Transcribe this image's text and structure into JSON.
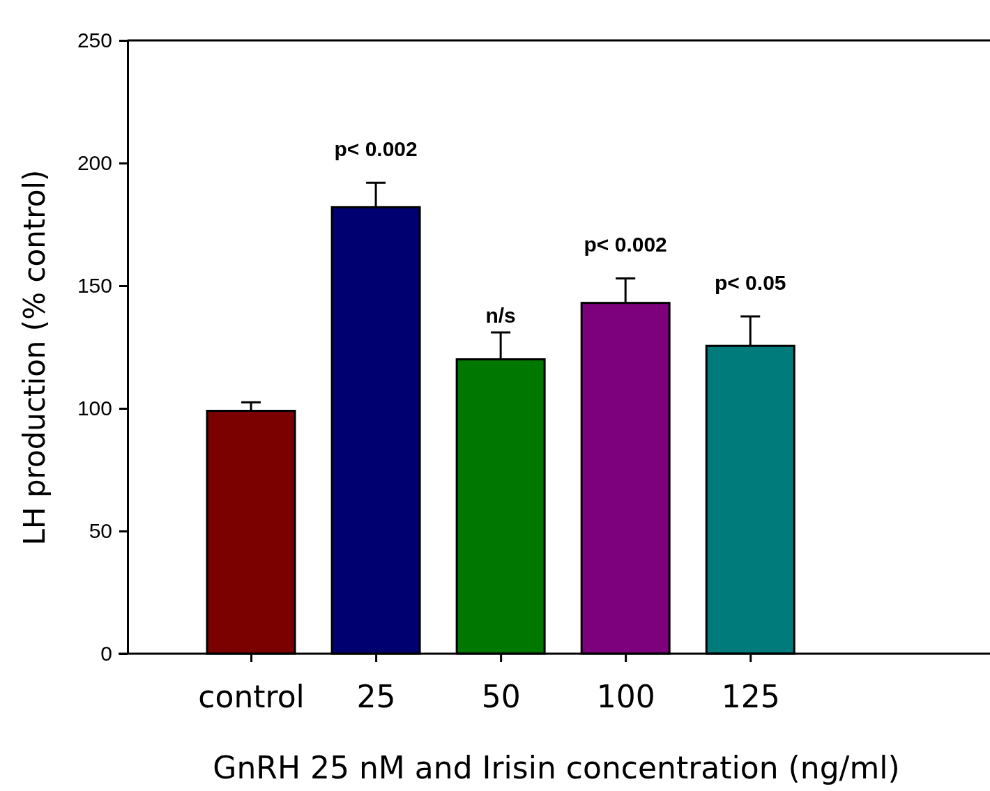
{
  "chart_data": {
    "type": "bar",
    "xlabel": "GnRH 25 nM  and Irisin concentration (ng/ml)",
    "ylabel": "LH production  (% control)",
    "categories": [
      "control",
      "25",
      "50",
      "100",
      "125"
    ],
    "values": [
      99,
      182,
      120,
      143,
      125.5
    ],
    "colors": [
      "#7b0000",
      "#000070",
      "#007800",
      "#7d007d",
      "#007b7b"
    ],
    "errors": [
      3.5,
      10,
      11,
      10,
      12
    ],
    "ylim": [
      0,
      250
    ],
    "yticks": [
      0,
      50,
      100,
      150,
      200,
      250
    ],
    "grid": false,
    "annotations": [
      "p< 0.002",
      "n/s",
      "p< 0.002",
      "p< 0.05"
    ]
  }
}
